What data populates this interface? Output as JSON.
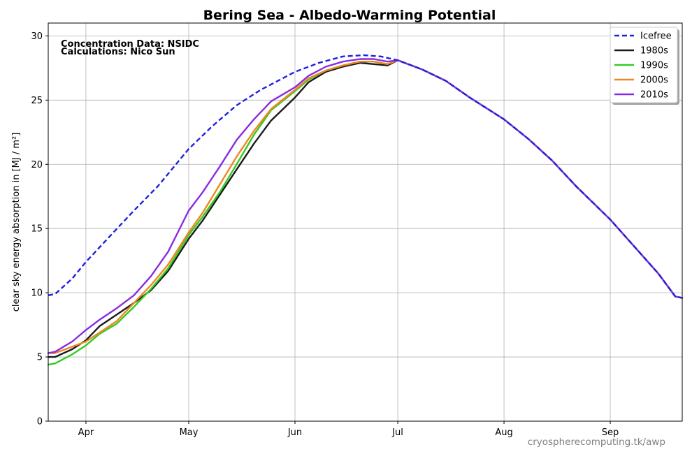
{
  "chart_data": {
    "type": "line",
    "title": "Bering Sea - Albedo-Warming Potential",
    "ylabel": "clear sky energy absorption in  [MJ / m²]",
    "ylim": [
      0,
      31
    ],
    "yticks": [
      0,
      5,
      10,
      15,
      20,
      25,
      30
    ],
    "xlim": [
      "Mar 21",
      "Sep 22"
    ],
    "xticks": [
      {
        "date": "Apr 1",
        "label": "Apr"
      },
      {
        "date": "May 1",
        "label": "May"
      },
      {
        "date": "Jun 1",
        "label": "Jun"
      },
      {
        "date": "Jul 1",
        "label": "Jul"
      },
      {
        "date": "Aug 1",
        "label": "Aug"
      },
      {
        "date": "Sep 1",
        "label": "Sep"
      }
    ],
    "grid": true,
    "legend_position": "top-right",
    "annotations": [
      "Concentration Data: NSIDC",
      "Calculations: Nico Sun"
    ],
    "credit": "cryospherecomputing.tk/awp",
    "series": [
      {
        "name": "Icefree",
        "color": "#2020e0",
        "style": "dashed",
        "points": [
          [
            "Mar 21",
            9.8
          ],
          [
            "Mar 23",
            9.9
          ],
          [
            "Mar 28",
            11.1
          ],
          [
            "Apr 1",
            12.4
          ],
          [
            "Apr 8",
            14.4
          ],
          [
            "Apr 15",
            16.4
          ],
          [
            "Apr 22",
            18.3
          ],
          [
            "May 1",
            21.2
          ],
          [
            "May 8",
            23.0
          ],
          [
            "May 15",
            24.6
          ],
          [
            "May 22",
            25.8
          ],
          [
            "Jun 1",
            27.2
          ],
          [
            "Jun 8",
            27.9
          ],
          [
            "Jun 15",
            28.4
          ],
          [
            "Jun 21",
            28.5
          ],
          [
            "Jun 26",
            28.4
          ],
          [
            "Jul 1",
            28.1
          ],
          [
            "Jul 8",
            27.4
          ],
          [
            "Jul 15",
            26.5
          ],
          [
            "Jul 22",
            25.2
          ],
          [
            "Aug 1",
            23.5
          ],
          [
            "Aug 8",
            22.0
          ],
          [
            "Aug 15",
            20.3
          ],
          [
            "Aug 22",
            18.3
          ],
          [
            "Sep 1",
            15.7
          ],
          [
            "Sep 8",
            13.6
          ],
          [
            "Sep 15",
            11.5
          ],
          [
            "Sep 20",
            9.7
          ],
          [
            "Sep 22",
            9.6
          ]
        ]
      },
      {
        "name": "1980s",
        "color": "#1a1a1a",
        "style": "solid",
        "points": [
          [
            "Mar 21",
            5.0
          ],
          [
            "Mar 23",
            5.0
          ],
          [
            "Mar 28",
            5.6
          ],
          [
            "Apr 1",
            6.3
          ],
          [
            "Apr 5",
            7.4
          ],
          [
            "Apr 10",
            8.3
          ],
          [
            "Apr 15",
            9.2
          ],
          [
            "Apr 20",
            10.2
          ],
          [
            "Apr 25",
            11.7
          ],
          [
            "May 1",
            14.2
          ],
          [
            "May 5",
            15.6
          ],
          [
            "May 10",
            17.6
          ],
          [
            "May 15",
            19.6
          ],
          [
            "May 20",
            21.6
          ],
          [
            "May 25",
            23.4
          ],
          [
            "Jun 1",
            25.2
          ],
          [
            "Jun 5",
            26.4
          ],
          [
            "Jun 10",
            27.2
          ],
          [
            "Jun 15",
            27.6
          ],
          [
            "Jun 20",
            27.9
          ],
          [
            "Jun 24",
            27.8
          ],
          [
            "Jun 28",
            27.7
          ],
          [
            "Jul 1",
            28.1
          ],
          [
            "Jul 8",
            27.4
          ],
          [
            "Jul 15",
            26.5
          ],
          [
            "Jul 22",
            25.2
          ],
          [
            "Aug 1",
            23.5
          ],
          [
            "Aug 8",
            22.0
          ],
          [
            "Aug 15",
            20.3
          ],
          [
            "Aug 22",
            18.3
          ],
          [
            "Sep 1",
            15.7
          ],
          [
            "Sep 8",
            13.6
          ],
          [
            "Sep 15",
            11.5
          ],
          [
            "Sep 20",
            9.7
          ],
          [
            "Sep 22",
            9.6
          ]
        ]
      },
      {
        "name": "1990s",
        "color": "#33cc22",
        "style": "solid",
        "points": [
          [
            "Mar 21",
            4.4
          ],
          [
            "Mar 23",
            4.5
          ],
          [
            "Mar 28",
            5.2
          ],
          [
            "Apr 1",
            5.9
          ],
          [
            "Apr 5",
            6.8
          ],
          [
            "Apr 10",
            7.6
          ],
          [
            "Apr 15",
            8.9
          ],
          [
            "Apr 20",
            10.3
          ],
          [
            "Apr 25",
            11.9
          ],
          [
            "May 1",
            14.5
          ],
          [
            "May 5",
            15.9
          ],
          [
            "May 10",
            17.8
          ],
          [
            "May 15",
            20.0
          ],
          [
            "May 20",
            22.3
          ],
          [
            "May 25",
            24.2
          ],
          [
            "Jun 1",
            25.7
          ],
          [
            "Jun 5",
            26.6
          ],
          [
            "Jun 10",
            27.3
          ],
          [
            "Jun 15",
            27.7
          ],
          [
            "Jun 20",
            28.0
          ],
          [
            "Jun 24",
            28.0
          ],
          [
            "Jun 28",
            27.8
          ],
          [
            "Jul 1",
            28.1
          ],
          [
            "Jul 8",
            27.4
          ],
          [
            "Jul 15",
            26.5
          ],
          [
            "Jul 22",
            25.2
          ],
          [
            "Aug 1",
            23.5
          ],
          [
            "Aug 8",
            22.0
          ],
          [
            "Aug 15",
            20.3
          ],
          [
            "Aug 22",
            18.3
          ],
          [
            "Sep 1",
            15.7
          ],
          [
            "Sep 8",
            13.6
          ],
          [
            "Sep 15",
            11.5
          ],
          [
            "Sep 20",
            9.7
          ],
          [
            "Sep 22",
            9.6
          ]
        ]
      },
      {
        "name": "2000s",
        "color": "#ee8822",
        "style": "solid",
        "points": [
          [
            "Mar 21",
            5.3
          ],
          [
            "Mar 23",
            5.3
          ],
          [
            "Mar 28",
            5.8
          ],
          [
            "Apr 1",
            6.2
          ],
          [
            "Apr 5",
            6.9
          ],
          [
            "Apr 10",
            7.8
          ],
          [
            "Apr 15",
            9.2
          ],
          [
            "Apr 20",
            10.6
          ],
          [
            "Apr 25",
            12.2
          ],
          [
            "May 1",
            14.7
          ],
          [
            "May 5",
            16.2
          ],
          [
            "May 10",
            18.4
          ],
          [
            "May 15",
            20.6
          ],
          [
            "May 20",
            22.6
          ],
          [
            "May 25",
            24.3
          ],
          [
            "Jun 1",
            25.8
          ],
          [
            "Jun 5",
            26.7
          ],
          [
            "Jun 10",
            27.3
          ],
          [
            "Jun 15",
            27.7
          ],
          [
            "Jun 20",
            28.0
          ],
          [
            "Jun 24",
            28.0
          ],
          [
            "Jun 28",
            27.8
          ],
          [
            "Jul 1",
            28.1
          ],
          [
            "Jul 8",
            27.4
          ],
          [
            "Jul 15",
            26.5
          ],
          [
            "Jul 22",
            25.2
          ],
          [
            "Aug 1",
            23.5
          ],
          [
            "Aug 8",
            22.0
          ],
          [
            "Aug 15",
            20.3
          ],
          [
            "Aug 22",
            18.3
          ],
          [
            "Sep 1",
            15.7
          ],
          [
            "Sep 8",
            13.6
          ],
          [
            "Sep 15",
            11.5
          ],
          [
            "Sep 20",
            9.7
          ],
          [
            "Sep 22",
            9.6
          ]
        ]
      },
      {
        "name": "2010s",
        "color": "#8a2be2",
        "style": "solid",
        "points": [
          [
            "Mar 21",
            5.3
          ],
          [
            "Mar 23",
            5.4
          ],
          [
            "Mar 28",
            6.2
          ],
          [
            "Apr 1",
            7.1
          ],
          [
            "Apr 5",
            7.9
          ],
          [
            "Apr 10",
            8.8
          ],
          [
            "Apr 15",
            9.8
          ],
          [
            "Apr 20",
            11.3
          ],
          [
            "Apr 25",
            13.2
          ],
          [
            "May 1",
            16.4
          ],
          [
            "May 5",
            17.8
          ],
          [
            "May 10",
            19.8
          ],
          [
            "May 15",
            21.9
          ],
          [
            "May 20",
            23.5
          ],
          [
            "May 25",
            24.9
          ],
          [
            "Jun 1",
            26.0
          ],
          [
            "Jun 5",
            26.9
          ],
          [
            "Jun 10",
            27.6
          ],
          [
            "Jun 15",
            28.0
          ],
          [
            "Jun 20",
            28.2
          ],
          [
            "Jun 24",
            28.2
          ],
          [
            "Jun 28",
            28.0
          ],
          [
            "Jul 1",
            28.1
          ],
          [
            "Jul 8",
            27.4
          ],
          [
            "Jul 15",
            26.5
          ],
          [
            "Jul 22",
            25.2
          ],
          [
            "Aug 1",
            23.5
          ],
          [
            "Aug 8",
            22.0
          ],
          [
            "Aug 15",
            20.3
          ],
          [
            "Aug 22",
            18.3
          ],
          [
            "Sep 1",
            15.7
          ],
          [
            "Sep 8",
            13.6
          ],
          [
            "Sep 15",
            11.5
          ],
          [
            "Sep 20",
            9.7
          ],
          [
            "Sep 22",
            9.6
          ]
        ]
      }
    ]
  }
}
